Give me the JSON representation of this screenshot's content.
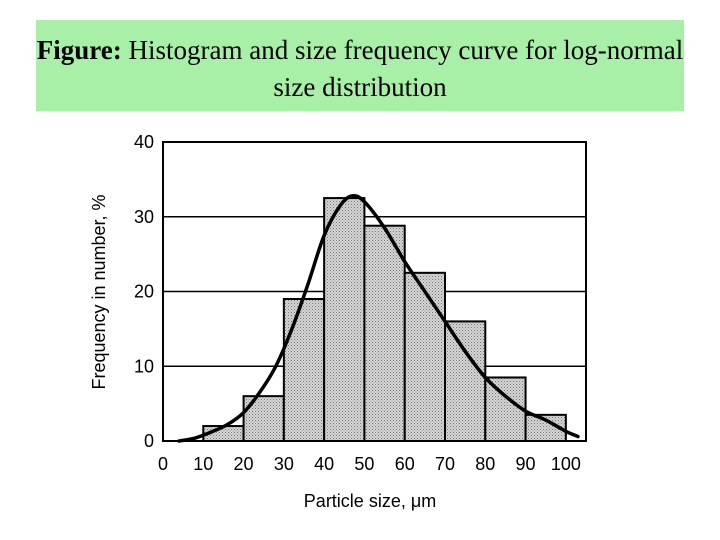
{
  "caption": {
    "lead": "Figure:",
    "text": "Histogram and size frequency curve for log-normal size distribution"
  },
  "colors": {
    "caption_bg": "#a8f0a8",
    "bar_fill": "#d4d4d4",
    "stroke": "#000000"
  },
  "chart_data": {
    "type": "bar",
    "title": "",
    "xlabel": "Particle size, μm",
    "ylabel": "Frequency in number, %",
    "xlim": [
      0,
      105
    ],
    "ylim": [
      0,
      40
    ],
    "x_ticks": [
      "0",
      "10",
      "20",
      "30",
      "40",
      "50",
      "60",
      "70",
      "80",
      "90",
      "100"
    ],
    "y_ticks": [
      "0",
      "10",
      "20",
      "30",
      "40"
    ],
    "grid": "horizontal",
    "bins": [
      {
        "from": 10,
        "to": 20,
        "value": 2
      },
      {
        "from": 20,
        "to": 30,
        "value": 6
      },
      {
        "from": 30,
        "to": 40,
        "value": 19
      },
      {
        "from": 40,
        "to": 50,
        "value": 32.5
      },
      {
        "from": 50,
        "to": 60,
        "value": 28.8
      },
      {
        "from": 60,
        "to": 70,
        "value": 22.5
      },
      {
        "from": 70,
        "to": 80,
        "value": 16
      },
      {
        "from": 80,
        "to": 90,
        "value": 8.5
      },
      {
        "from": 90,
        "to": 100,
        "value": 3.5
      }
    ],
    "curve": {
      "x": [
        4,
        8,
        12,
        16,
        20,
        24,
        28,
        32,
        36,
        40,
        44,
        47,
        50,
        55,
        60,
        65,
        70,
        75,
        80,
        85,
        90,
        95,
        100,
        103
      ],
      "y": [
        0,
        0.4,
        1.2,
        2.2,
        3.8,
        6.5,
        10,
        15,
        21,
        27.5,
        31.5,
        32.8,
        32,
        28.5,
        24,
        20,
        16,
        12,
        8.5,
        6,
        4,
        2.8,
        1.3,
        0.6
      ]
    }
  }
}
